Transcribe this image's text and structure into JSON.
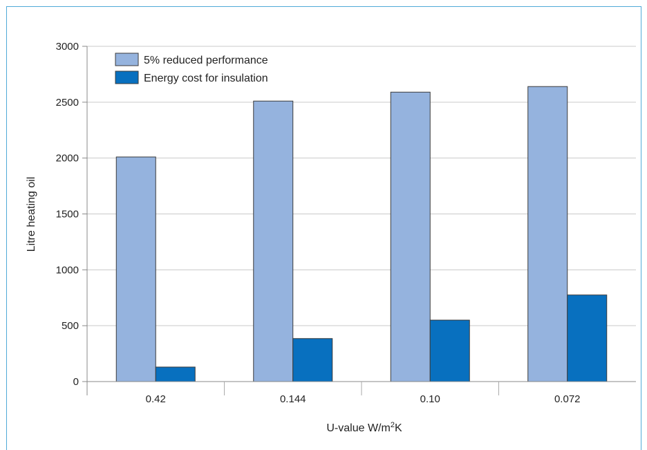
{
  "chart_data": {
    "type": "bar",
    "categories": [
      "0.42",
      "0.144",
      "0.10",
      "0.072"
    ],
    "series": [
      {
        "name": "5% reduced performance",
        "values": [
          2010,
          2510,
          2590,
          2640
        ],
        "color": "#95b3de"
      },
      {
        "name": "Energy cost for insulation",
        "values": [
          130,
          385,
          550,
          775
        ],
        "color": "#0870bf"
      }
    ],
    "ylabel": "Litre heating oil",
    "xlabel_main": "U-value W/m",
    "xlabel_sup": "2",
    "xlabel_tail": "K",
    "ylim": [
      0,
      3000
    ],
    "yticks": [
      "0",
      "500",
      "1000",
      "1500",
      "2000",
      "2500",
      "3000"
    ],
    "grid": true,
    "legend_position": "top-left"
  }
}
